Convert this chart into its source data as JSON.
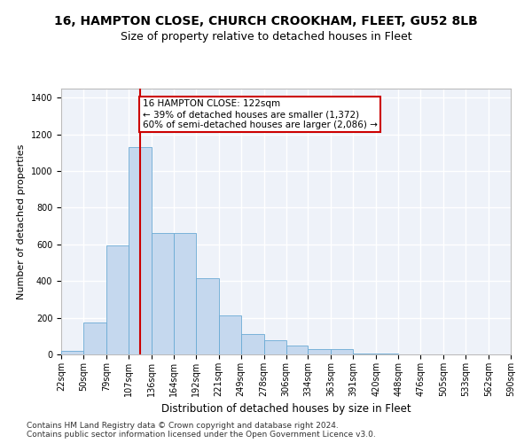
{
  "title1": "16, HAMPTON CLOSE, CHURCH CROOKHAM, FLEET, GU52 8LB",
  "title2": "Size of property relative to detached houses in Fleet",
  "xlabel": "Distribution of detached houses by size in Fleet",
  "ylabel": "Number of detached properties",
  "bar_color": "#c5d8ee",
  "bar_edge_color": "#6aaad4",
  "vline_x": 122,
  "vline_color": "#cc0000",
  "annotation_line1": "16 HAMPTON CLOSE: 122sqm",
  "annotation_line2": "← 39% of detached houses are smaller (1,372)",
  "annotation_line3": "60% of semi-detached houses are larger (2,086) →",
  "annotation_box_color": "#cc0000",
  "ylim": [
    0,
    1450
  ],
  "yticks": [
    0,
    200,
    400,
    600,
    800,
    1000,
    1200,
    1400
  ],
  "bin_edges": [
    22,
    50,
    79,
    107,
    136,
    164,
    192,
    221,
    249,
    278,
    306,
    334,
    363,
    391,
    420,
    448,
    476,
    505,
    533,
    562,
    590
  ],
  "bar_heights": [
    18,
    175,
    595,
    1130,
    660,
    660,
    415,
    215,
    110,
    75,
    50,
    30,
    30,
    5,
    5,
    0,
    0,
    0,
    0,
    0
  ],
  "footer1": "Contains HM Land Registry data © Crown copyright and database right 2024.",
  "footer2": "Contains public sector information licensed under the Open Government Licence v3.0.",
  "background_color": "#eef2f9",
  "grid_color": "#ffffff",
  "title1_fontsize": 10,
  "title2_fontsize": 9,
  "xlabel_fontsize": 8.5,
  "ylabel_fontsize": 8,
  "tick_fontsize": 7,
  "footer_fontsize": 6.5,
  "ann_fontsize": 7.5
}
